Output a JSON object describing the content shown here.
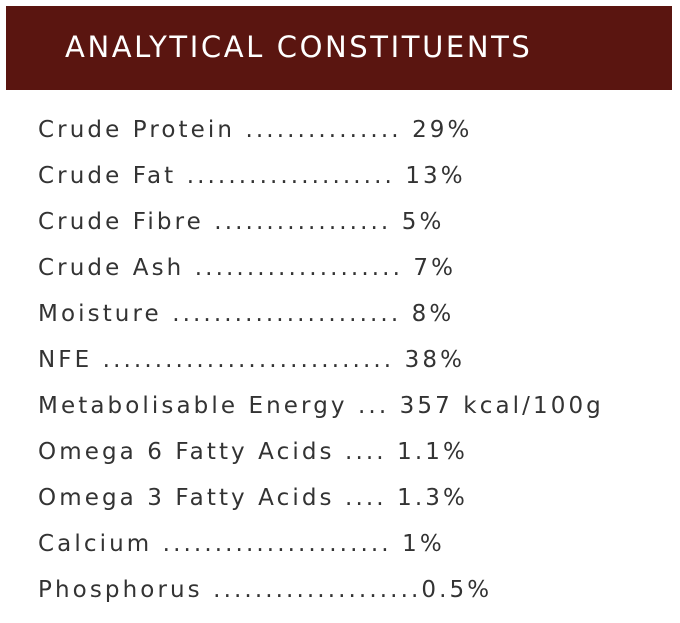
{
  "header": {
    "title": "ANALYTICAL CONSTITUENTS"
  },
  "list": {
    "rows": [
      "Crude Protein ............... 29%",
      "Crude Fat .................... 13%",
      "Crude Fibre ................. 5%",
      "Crude Ash .................... 7%",
      "Moisture ...................... 8%",
      "NFE ............................ 38%",
      "Metabolisable Energy ... 357 kcal/100g",
      "Omega 6 Fatty Acids .... 1.1%",
      "Omega 3 Fatty Acids .... 1.3%",
      "Calcium ...................... 1%",
      "Phosphorus ....................0.5%"
    ]
  }
}
